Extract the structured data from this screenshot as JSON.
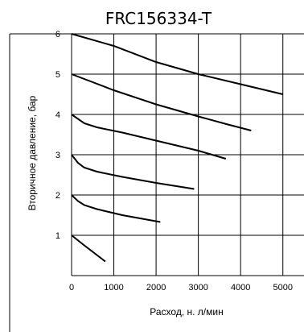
{
  "chart_data": {
    "type": "line",
    "title": "FRC156334-T",
    "xlabel": "Расход, н. л/мин",
    "ylabel": "Вторичное давление, бар",
    "xlim": [
      0,
      5500
    ],
    "ylim": [
      0,
      6
    ],
    "x_ticks": [
      "0",
      "1000",
      "2000",
      "3000",
      "4000",
      "5000"
    ],
    "y_ticks": [
      "1",
      "2",
      "3",
      "4",
      "5",
      "6"
    ],
    "grid": true,
    "series": [
      {
        "points": [
          [
            0,
            1.0
          ],
          [
            300,
            0.75
          ],
          [
            800,
            0.35
          ]
        ]
      },
      {
        "points": [
          [
            0,
            2.0
          ],
          [
            150,
            1.85
          ],
          [
            300,
            1.75
          ],
          [
            600,
            1.65
          ],
          [
            1200,
            1.5
          ],
          [
            2100,
            1.33
          ]
        ]
      },
      {
        "points": [
          [
            0,
            3.0
          ],
          [
            150,
            2.8
          ],
          [
            300,
            2.68
          ],
          [
            600,
            2.58
          ],
          [
            1200,
            2.45
          ],
          [
            2000,
            2.3
          ],
          [
            2900,
            2.15
          ]
        ]
      },
      {
        "points": [
          [
            0,
            4.0
          ],
          [
            300,
            3.78
          ],
          [
            600,
            3.68
          ],
          [
            1200,
            3.55
          ],
          [
            2000,
            3.35
          ],
          [
            3000,
            3.1
          ],
          [
            3650,
            2.9
          ]
        ]
      },
      {
        "points": [
          [
            0,
            5.0
          ],
          [
            1000,
            4.6
          ],
          [
            2000,
            4.25
          ],
          [
            3000,
            3.95
          ],
          [
            3700,
            3.75
          ],
          [
            4250,
            3.6
          ]
        ]
      },
      {
        "points": [
          [
            0,
            6.0
          ],
          [
            1000,
            5.7
          ],
          [
            2000,
            5.3
          ],
          [
            3000,
            5.0
          ],
          [
            4000,
            4.75
          ],
          [
            5000,
            4.5
          ]
        ]
      }
    ]
  }
}
